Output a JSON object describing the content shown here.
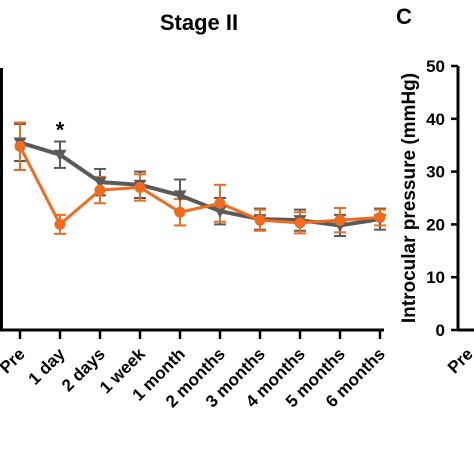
{
  "chart_data": [
    {
      "type": "line",
      "title": "Stage II",
      "categories": [
        "Pre",
        "1 day",
        "2 days",
        "1 week",
        "1 month",
        "2 months",
        "3 months",
        "4 months",
        "5 months",
        "6 months"
      ],
      "ylim": [
        0,
        50
      ],
      "annotations": [
        {
          "category": "1 day",
          "text": "*"
        }
      ],
      "series": [
        {
          "color": "#5a5a5a",
          "marker": "triangle-down",
          "values": [
            35.5,
            33.2,
            28.0,
            27.5,
            25.5,
            22.5,
            21.0,
            20.8,
            19.8,
            21.0
          ],
          "errors": [
            3.5,
            2.5,
            2.5,
            2.5,
            3.0,
            2.5,
            2.0,
            2.0,
            2.0,
            2.0
          ]
        },
        {
          "color": "#f26b1d",
          "marker": "circle",
          "values": [
            34.8,
            20.0,
            26.5,
            27.0,
            22.3,
            24.0,
            20.8,
            20.3,
            20.8,
            21.3
          ],
          "errors": [
            4.5,
            1.8,
            2.5,
            2.5,
            2.5,
            3.5,
            2.0,
            2.0,
            2.3,
            1.5
          ]
        }
      ]
    },
    {
      "type": "line",
      "panel_label": "C",
      "ylabel": "Introcular pressure (mmHg)",
      "ylim": [
        0,
        50
      ],
      "yticks": [
        0,
        10,
        20,
        30,
        40,
        50
      ],
      "categories": [
        "Pre"
      ]
    }
  ]
}
